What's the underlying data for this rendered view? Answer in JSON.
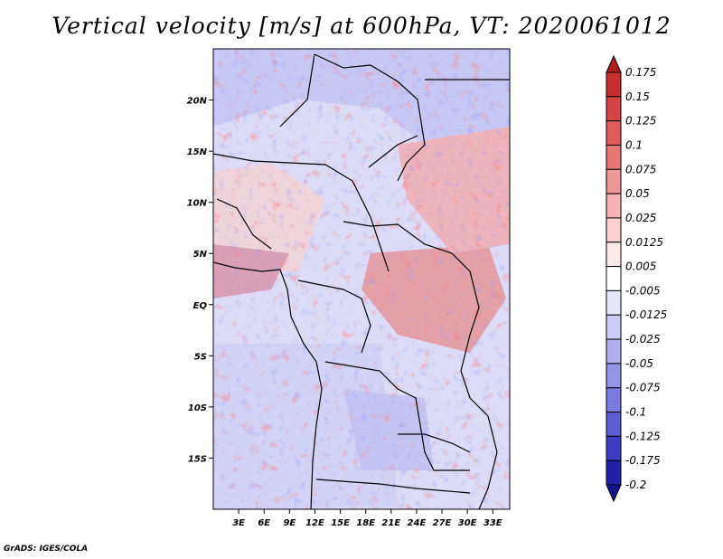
{
  "title": "Vertical velocity [m/s] at 600hPa, VT: 2020061012",
  "credit": "GrADS: IGES/COLA",
  "map": {
    "lon_range": [
      0,
      35
    ],
    "lat_range": [
      -20,
      25
    ],
    "lon_ticks": [
      "3E",
      "6E",
      "9E",
      "12E",
      "15E",
      "18E",
      "21E",
      "24E",
      "27E",
      "30E",
      "33E"
    ],
    "lat_ticks": [
      "20N",
      "15N",
      "10N",
      "5N",
      "EQ",
      "5S",
      "10S",
      "15S"
    ]
  },
  "colorbar": {
    "labels": [
      "0.175",
      "0.15",
      "0.125",
      "0.1",
      "0.075",
      "0.05",
      "0.025",
      "0.0125",
      "0.005",
      "-0.005",
      "-0.0125",
      "-0.025",
      "-0.05",
      "-0.075",
      "-0.1",
      "-0.125",
      "-0.175",
      "-0.2"
    ],
    "colors": [
      "#b41c1c",
      "#c83030",
      "#d64545",
      "#e05c5c",
      "#e87878",
      "#f09696",
      "#f6b4b4",
      "#fad0d0",
      "#fde8e8",
      "#ffffff",
      "#e6e6fc",
      "#ccccf8",
      "#b0b0f0",
      "#9494e8",
      "#7a7ae0",
      "#5c5cd4",
      "#3c3cc4",
      "#2020a8",
      "#14148c"
    ]
  }
}
